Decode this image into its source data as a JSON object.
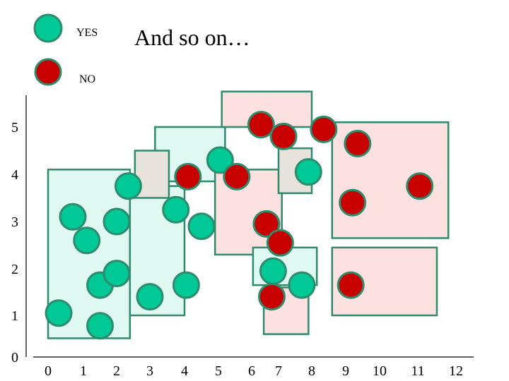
{
  "slide": {
    "title": "And so on…"
  },
  "legend": {
    "items": [
      {
        "label": "YES",
        "color": "#00c896"
      },
      {
        "label": "NO",
        "color": "#c80000"
      }
    ]
  },
  "colors": {
    "yes_fill": "#00c896",
    "no_fill": "#c80000",
    "stroke": "#2e8b6b",
    "yes_region": "#e0f8f2",
    "no_region": "#fde0e0",
    "mixed_region": "#e8e2dc"
  },
  "chart_data": {
    "type": "scatter",
    "x_ticks": [
      "0",
      "1",
      "2",
      "3",
      "4",
      "5",
      "6",
      "7",
      "8",
      "9",
      "10",
      "11",
      "12"
    ],
    "y_ticks": [
      "0",
      "1",
      "2",
      "3",
      "4",
      "5"
    ],
    "series": [
      {
        "name": "YES",
        "points": [
          [
            0.3,
            1.05
          ],
          [
            1.5,
            0.75
          ],
          [
            0.7,
            3.1
          ],
          [
            1.1,
            2.6
          ],
          [
            1.5,
            1.65
          ],
          [
            2.0,
            1.9
          ],
          [
            2.0,
            3.0
          ],
          [
            2.35,
            3.75
          ],
          [
            3.75,
            3.25
          ],
          [
            3.0,
            1.4
          ],
          [
            4.05,
            1.65
          ],
          [
            4.5,
            2.9
          ],
          [
            5.05,
            4.3
          ],
          [
            6.8,
            1.95
          ],
          [
            7.7,
            1.65
          ],
          [
            7.9,
            4.05
          ]
        ]
      },
      {
        "name": "NO",
        "points": [
          [
            4.1,
            3.95
          ],
          [
            6.35,
            5.05
          ],
          [
            7.15,
            4.8
          ],
          [
            5.55,
            3.95
          ],
          [
            6.55,
            2.95
          ],
          [
            7.05,
            2.55
          ],
          [
            6.75,
            1.4
          ],
          [
            8.35,
            4.95
          ],
          [
            9.35,
            4.65
          ],
          [
            9.2,
            3.4
          ],
          [
            11.05,
            3.75
          ],
          [
            9.15,
            1.65
          ]
        ]
      }
    ],
    "regions": [
      {
        "class": "YES",
        "x": [
          0.0,
          2.4
        ],
        "y": [
          0.45,
          4.1
        ]
      },
      {
        "class": "YES",
        "x": [
          2.4,
          4.0
        ],
        "y": [
          1.0,
          3.75
        ]
      },
      {
        "class": "YES",
        "x": [
          3.15,
          5.2
        ],
        "y": [
          3.85,
          5.0
        ]
      },
      {
        "class": "NO",
        "x": [
          5.1,
          8.0
        ],
        "y": [
          5.0,
          5.75
        ]
      },
      {
        "class": "NO",
        "x": [
          8.6,
          11.8
        ],
        "y": [
          2.65,
          5.1
        ]
      },
      {
        "class": "NO",
        "x": [
          8.6,
          11.5
        ],
        "y": [
          1.0,
          2.45
        ]
      },
      {
        "class": "NO",
        "x": [
          4.9,
          7.1
        ],
        "y": [
          2.3,
          4.1
        ]
      },
      {
        "class": "YES",
        "x": [
          6.05,
          8.15
        ],
        "y": [
          1.65,
          2.45
        ]
      },
      {
        "class": "NO",
        "x": [
          6.45,
          7.9
        ],
        "y": [
          0.55,
          1.6
        ]
      },
      {
        "class": "mixed",
        "x": [
          2.55,
          3.55
        ],
        "y": [
          3.5,
          4.5
        ]
      },
      {
        "class": "mixed",
        "x": [
          7.0,
          8.0
        ],
        "y": [
          3.6,
          4.55
        ]
      }
    ]
  }
}
